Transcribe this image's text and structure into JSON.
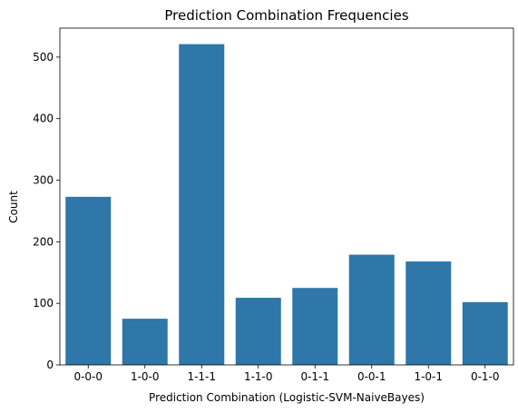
{
  "chart_data": {
    "type": "bar",
    "title": "Prediction Combination Frequencies",
    "xlabel": "Prediction Combination (Logistic-SVM-NaiveBayes)",
    "ylabel": "Count",
    "categories": [
      "0-0-0",
      "1-0-0",
      "1-1-1",
      "1-1-0",
      "0-1-1",
      "0-0-1",
      "1-0-1",
      "0-1-0"
    ],
    "values": [
      273,
      75,
      521,
      109,
      125,
      179,
      168,
      102
    ],
    "ylim": [
      0,
      547
    ],
    "yticks": [
      0,
      100,
      200,
      300,
      400,
      500
    ],
    "grid": false,
    "bar_color": "#2e77a8",
    "axis_color": "#000000"
  }
}
